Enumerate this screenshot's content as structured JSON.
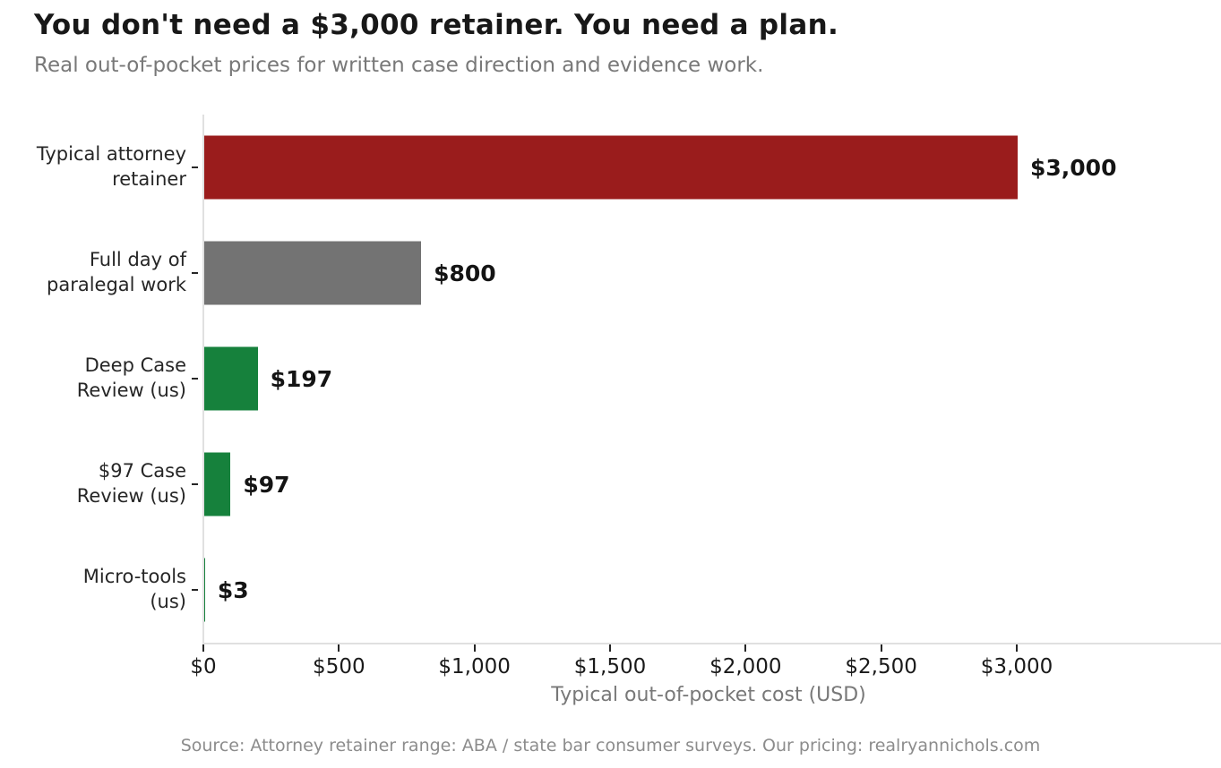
{
  "header": {
    "title": "You don't need a $3,000 retainer. You need a plan.",
    "subtitle": "Real out-of-pocket prices for written case direction and evidence work."
  },
  "chart_data": {
    "type": "bar",
    "orientation": "horizontal",
    "title": "You don't need a $3,000 retainer. You need a plan.",
    "subtitle": "Real out-of-pocket prices for written case direction and evidence work.",
    "categories": [
      "Typical attorney\nretainer",
      "Full day of\nparalegal work",
      "Deep Case\nReview (us)",
      "$97 Case\nReview (us)",
      "Micro-tools\n(us)"
    ],
    "values": [
      3000,
      800,
      197,
      97,
      3
    ],
    "value_labels": [
      "$3,000",
      "$800",
      "$197",
      "$97",
      "$3"
    ],
    "bar_colors": [
      "#9a1c1c",
      "#737373",
      "#16813c",
      "#16813c",
      "#16813c"
    ],
    "xlabel": "Typical out-of-pocket cost (USD)",
    "ylabel": "",
    "x_tick_values": [
      0,
      500,
      1000,
      1500,
      2000,
      2500,
      3000
    ],
    "x_tick_labels": [
      "$0",
      "$500",
      "$1,000",
      "$1,500",
      "$2,000",
      "$2,500",
      "$3,000"
    ],
    "xlim": [
      0,
      3750
    ],
    "grid": false,
    "legend": null,
    "colors": {
      "retainer_bar": "#9a1c1c",
      "paralegal_bar": "#737373",
      "our_pricing_bar": "#16813c",
      "axis_spine": "#e0e0e0",
      "tick_mark": "#262626"
    }
  },
  "footer": {
    "source": "Source: Attorney retainer range: ABA / state bar consumer surveys. Our pricing: realryannichols.com"
  }
}
